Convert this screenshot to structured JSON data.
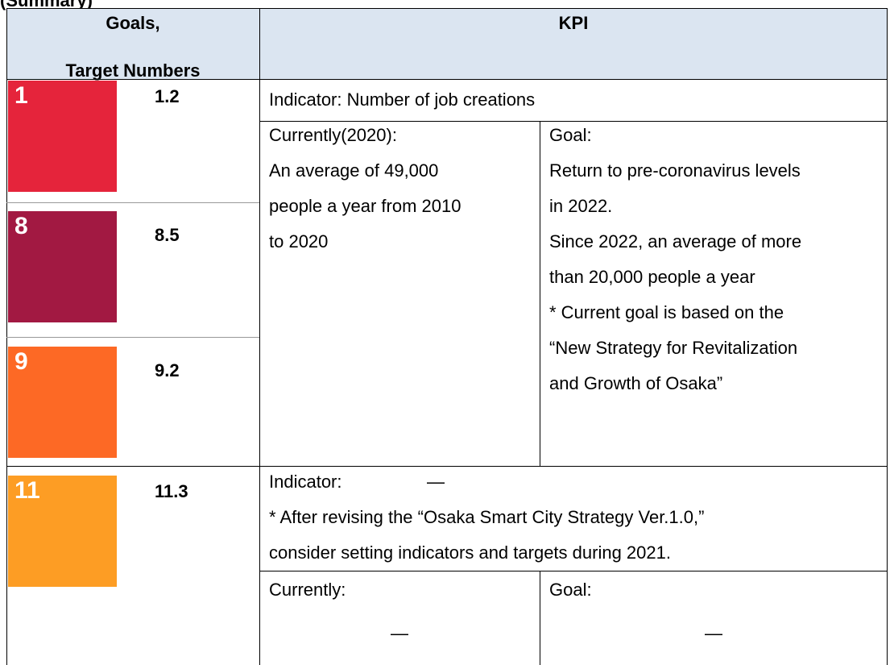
{
  "header": {
    "title": "(Summary)"
  },
  "table": {
    "headers": {
      "goals": [
        "Goals,",
        "Target Numbers"
      ],
      "kpi": "KPI"
    },
    "rows": [
      {
        "targets": [
          {
            "icon": "1",
            "number": "1.2"
          },
          {
            "icon": "8",
            "number": "8.5"
          },
          {
            "icon": "9",
            "number": "9.2"
          }
        ],
        "indicator": "Indicator: Number of job creations",
        "current": [
          "Currently(2020):",
          "An average of 49,000",
          "people a year from 2010",
          "to 2020"
        ],
        "goal": [
          "Goal:",
          "Return to pre-coronavirus levels",
          "in 2022.",
          "Since 2022, an average of more",
          "than 20,000 people a year",
          "* Current goal is based on the",
          "“New Strategy for Revitalization",
          "and Growth of Osaka”"
        ]
      },
      {
        "targets": [
          {
            "icon": "11",
            "number": "11.3"
          }
        ],
        "indicator": "Indicator:",
        "indicator_value": "—",
        "notes": [
          "* After revising the “Osaka Smart City Strategy Ver.1.0,”",
          "consider setting indicators and targets during 2021."
        ],
        "current": [
          "Currently:"
        ],
        "current_value": "—",
        "goal": [
          "Goal:"
        ],
        "goal_value": "—"
      }
    ]
  }
}
